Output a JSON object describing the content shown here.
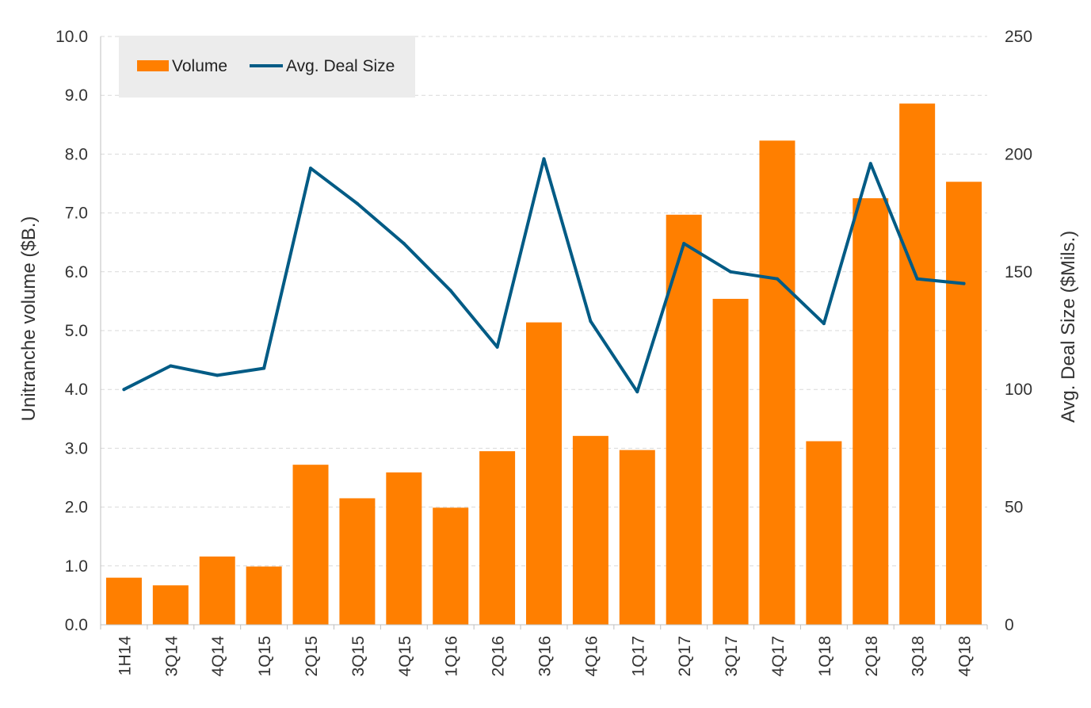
{
  "chart_data": {
    "type": "bar",
    "title": "",
    "xlabel": "",
    "ylabel": "Unitranche volume ($B.)",
    "y2label": "Avg. Deal Size ($Mils.)",
    "ylim": [
      0,
      10
    ],
    "y2lim": [
      0,
      250
    ],
    "yticks": [
      "0.0",
      "1.0",
      "2.0",
      "3.0",
      "4.0",
      "5.0",
      "6.0",
      "7.0",
      "8.0",
      "9.0",
      "10.0"
    ],
    "y2ticks": [
      "0",
      "50",
      "100",
      "150",
      "200",
      "250"
    ],
    "categories": [
      "1H14",
      "3Q14",
      "4Q14",
      "1Q15",
      "2Q15",
      "3Q15",
      "4Q15",
      "1Q16",
      "2Q16",
      "3Q16",
      "4Q16",
      "1Q17",
      "2Q17",
      "3Q17",
      "4Q17",
      "1Q18",
      "2Q18",
      "3Q18",
      "4Q18"
    ],
    "grid": true,
    "legend_position": "top-left",
    "series": [
      {
        "name": "Volume",
        "type": "bar",
        "axis": "left",
        "color": "#FF7F00",
        "values": [
          0.8,
          0.67,
          1.16,
          0.99,
          2.72,
          2.15,
          2.59,
          1.99,
          2.95,
          5.14,
          3.21,
          2.97,
          6.97,
          5.54,
          8.23,
          3.12,
          7.25,
          8.86,
          7.53
        ]
      },
      {
        "name": "Avg. Deal Size",
        "type": "line",
        "axis": "right",
        "color": "#005B85",
        "values": [
          100,
          110,
          106,
          109,
          194,
          179,
          162,
          142,
          118,
          198,
          129,
          99,
          162,
          150,
          147,
          128,
          196,
          147,
          145
        ]
      }
    ]
  }
}
